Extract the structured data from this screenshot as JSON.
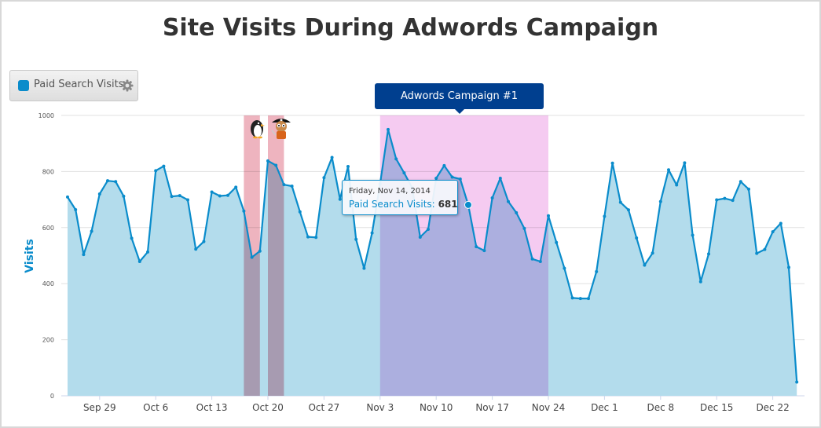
{
  "colors": {
    "line": "#0a8ccb",
    "area": "#b3dcec",
    "band_red": "#eeb4bf",
    "band_pink": "#f5cbf1",
    "campaign_label_bg": "#003f8f",
    "grid": "#e0e0e0"
  },
  "chart_data": {
    "type": "area",
    "title": "Site Visits During Adwords Campaign",
    "ylabel": "Visits",
    "xlabel": "",
    "ylim": [
      0,
      1000
    ],
    "yticks": [
      0,
      200,
      400,
      600,
      800,
      1000
    ],
    "grid": true,
    "legend": {
      "position": "top-left",
      "entries": [
        "Paid Search Visits"
      ],
      "icon": "gear-icon"
    },
    "start_date": "2014-09-25",
    "series": [
      {
        "name": "Paid Search Visits",
        "values": [
          709,
          664,
          504,
          587,
          720,
          767,
          764,
          712,
          562,
          479,
          513,
          803,
          819,
          711,
          714,
          699,
          523,
          550,
          727,
          713,
          715,
          744,
          659,
          494,
          516,
          838,
          822,
          753,
          748,
          656,
          567,
          565,
          778,
          850,
          701,
          818,
          558,
          455,
          581,
          756,
          950,
          845,
          795,
          742,
          566,
          594,
          776,
          821,
          780,
          773,
          681,
          532,
          518,
          706,
          776,
          693,
          653,
          597,
          488,
          479,
          642,
          547,
          455,
          349,
          347,
          347,
          443,
          640,
          830,
          690,
          663,
          563,
          466,
          509,
          693,
          806,
          752,
          831,
          573,
          407,
          506,
          699,
          704,
          697,
          764,
          737,
          508,
          522,
          585,
          615,
          458,
          49
        ]
      }
    ],
    "xticks": [
      {
        "index": 4,
        "label": "Sep 29"
      },
      {
        "index": 11,
        "label": "Oct 6"
      },
      {
        "index": 18,
        "label": "Oct 13"
      },
      {
        "index": 25,
        "label": "Oct 20"
      },
      {
        "index": 32,
        "label": "Oct 27"
      },
      {
        "index": 39,
        "label": "Nov 3"
      },
      {
        "index": 46,
        "label": "Nov 10"
      },
      {
        "index": 53,
        "label": "Nov 17"
      },
      {
        "index": 60,
        "label": "Nov 24"
      },
      {
        "index": 67,
        "label": "Dec 1"
      },
      {
        "index": 74,
        "label": "Dec 8"
      },
      {
        "index": 81,
        "label": "Dec 15"
      },
      {
        "index": 88,
        "label": "Dec 22"
      }
    ],
    "plot_bands": [
      {
        "from_index": 22,
        "to_index": 24,
        "color": "band_red",
        "icon": "penguin-icon"
      },
      {
        "from_index": 25,
        "to_index": 27,
        "color": "band_red",
        "icon": "pirate-icon"
      },
      {
        "from_index": 39,
        "to_index": 60,
        "color": "band_pink",
        "label": "Adwords Campaign #1"
      }
    ],
    "tooltip": {
      "index": 50,
      "date": "Friday, Nov 14, 2014",
      "series_label": "Paid Search Visits:",
      "value": "681"
    }
  }
}
